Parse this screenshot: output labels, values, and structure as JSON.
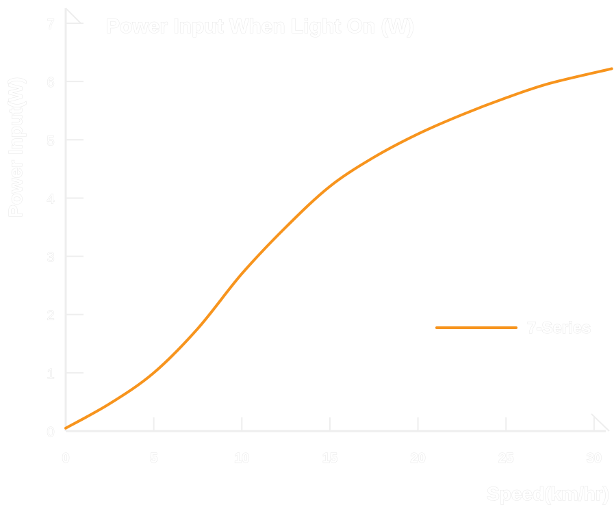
{
  "chart_data": {
    "type": "line",
    "title": "Power Input When Light On (W)",
    "xlabel": "Speed(km/hr)",
    "ylabel": "Power Input(W)",
    "xlim": [
      0,
      31
    ],
    "ylim": [
      0,
      7
    ],
    "xticks": [
      "0",
      "5",
      "10",
      "15",
      "20",
      "25",
      "30"
    ],
    "yticks": [
      "0",
      "1",
      "2",
      "3",
      "4",
      "5",
      "6",
      "7"
    ],
    "legend_position": "right",
    "series": [
      {
        "name": "7-Series",
        "color": "#f7941d",
        "x": [
          0,
          2.5,
          5,
          7.5,
          10,
          12.5,
          15,
          17.5,
          20,
          22.5,
          25,
          27.5,
          31
        ],
        "y": [
          0.05,
          0.47,
          1.0,
          1.76,
          2.7,
          3.5,
          4.2,
          4.7,
          5.1,
          5.43,
          5.72,
          5.97,
          6.22
        ]
      }
    ]
  }
}
